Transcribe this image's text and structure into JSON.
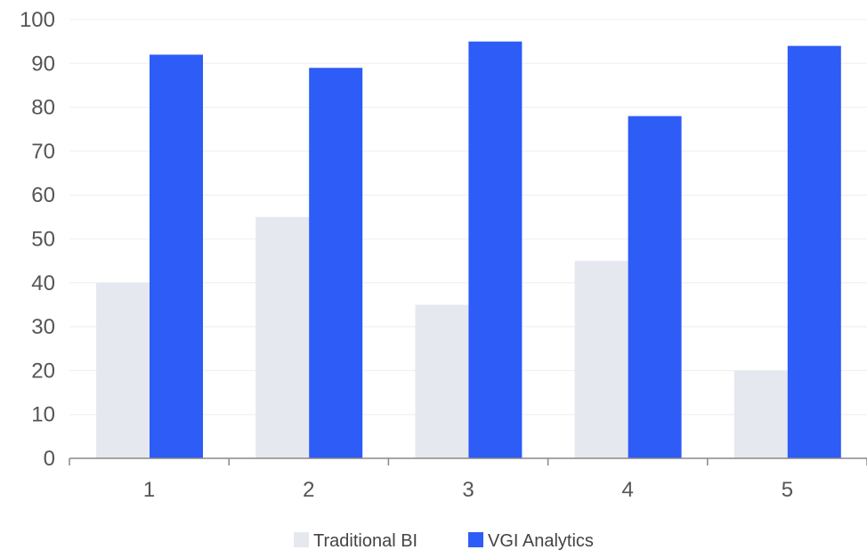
{
  "chart_data": {
    "type": "bar",
    "categories": [
      "1",
      "2",
      "3",
      "4",
      "5"
    ],
    "series": [
      {
        "name": "Traditional BI",
        "color": "#e5e8ef",
        "values": [
          40,
          55,
          35,
          45,
          20
        ]
      },
      {
        "name": "VGI Analytics",
        "color": "#2d5cf6",
        "values": [
          92,
          89,
          95,
          78,
          94
        ]
      }
    ],
    "title": "",
    "xlabel": "",
    "ylabel": "",
    "ylim": [
      0,
      100
    ],
    "yticks": [
      "0",
      "10",
      "20",
      "30",
      "40",
      "50",
      "60",
      "70",
      "80",
      "90",
      "100"
    ],
    "grid": true,
    "legend": "bottom-center"
  }
}
